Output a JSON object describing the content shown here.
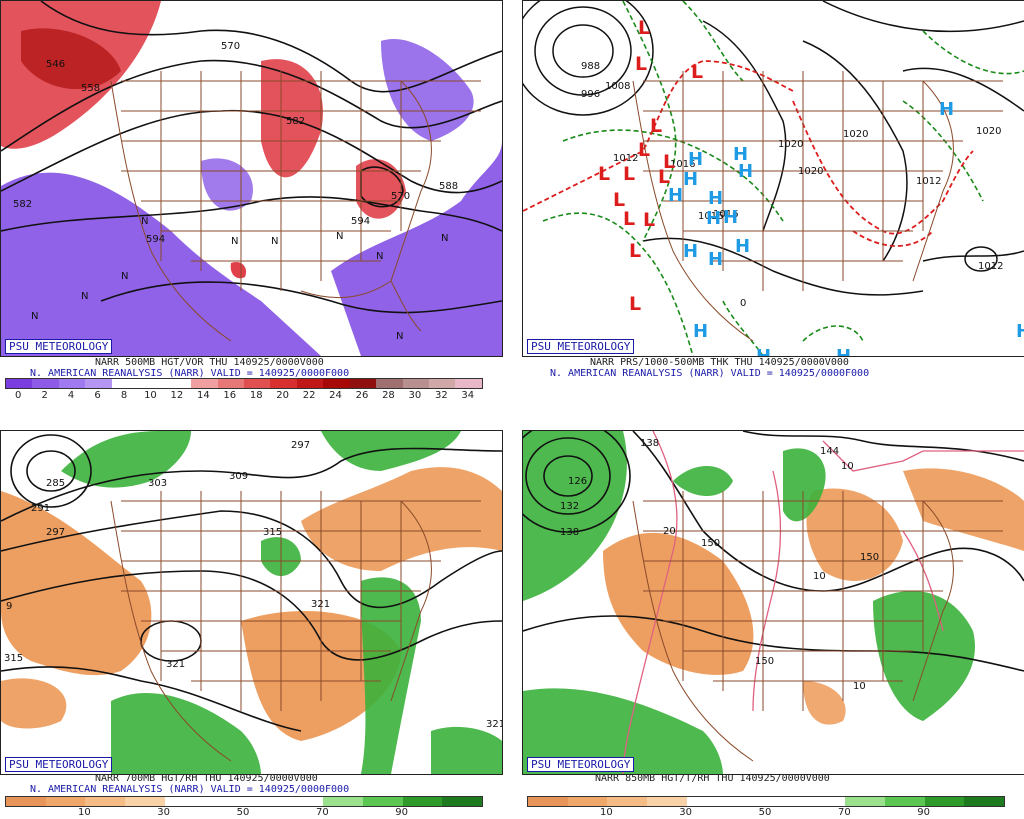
{
  "badge": "PSU METEOROLOGY",
  "panels": {
    "tl": {
      "caption1": "NARR 500MB HGT/VOR THU  140925/0000V000",
      "caption2": "N. AMERICAN REANALYSIS (NARR) VALID = 140925/0000F000",
      "labels": [
        "546",
        "558",
        "570",
        "582",
        "594",
        "582",
        "570",
        "588",
        "594",
        "N",
        "N",
        "N",
        "N",
        "N",
        "N",
        "N",
        "N",
        "N",
        "N"
      ],
      "colorbar": [
        "#7a3de0",
        "#8e5be8",
        "#a07af0",
        "#b596f2",
        "#ffffff",
        "#ffffff",
        "#ffffff",
        "#f0a0a0",
        "#e87878",
        "#e05050",
        "#d83030",
        "#c01818",
        "#a80808",
        "#901010",
        "#a07070",
        "#b89090",
        "#d0a8a8",
        "#e8b8c8"
      ],
      "ticks": [
        "0",
        "2",
        "4",
        "6",
        "8",
        "10",
        "12",
        "14",
        "16",
        "18",
        "20",
        "22",
        "24",
        "26",
        "28",
        "30",
        "32",
        "34"
      ]
    },
    "tr": {
      "caption1": "NARR PRS/1000-500MB THK THU  140925/0000V000",
      "caption2": "N. AMERICAN REANALYSIS (NARR) VALID = 140925/0000F000",
      "labels": [
        "988",
        "996",
        "1008",
        "1012",
        "1016",
        "1020",
        "1012",
        "1020",
        "1020",
        "1012",
        "1016",
        "1020",
        "1016",
        "0"
      ]
    },
    "bl": {
      "caption1": "NARR 700MB HGT/RH THU  140925/0000V000",
      "caption2": "N. AMERICAN REANALYSIS (NARR) VALID = 140925/0000F000",
      "labels": [
        "285",
        "291",
        "297",
        "303",
        "309",
        "297",
        "315",
        "321",
        "321",
        "315",
        "321",
        "9"
      ],
      "colorbar": [
        "#e8955a",
        "#f0a86a",
        "#f5bd85",
        "#fad2a8",
        "#ffffff",
        "#ffffff",
        "#ffffff",
        "#ffffff",
        "#9be08c",
        "#5cc652",
        "#2e9a2a",
        "#1e7a1e"
      ],
      "ticks": [
        "10",
        "30",
        "50",
        "70",
        "90"
      ]
    },
    "br": {
      "caption1": "NARR 850MB HGT/T/RH THU  140925/0000V000",
      "labels": [
        "126",
        "132",
        "138",
        "138",
        "144",
        "150",
        "150",
        "150",
        "10",
        "20",
        "10",
        "10"
      ],
      "colorbar": [
        "#e8955a",
        "#f0a86a",
        "#f5bd85",
        "#fad2a8",
        "#ffffff",
        "#ffffff",
        "#ffffff",
        "#ffffff",
        "#9be08c",
        "#5cc652",
        "#2e9a2a",
        "#1e7a1e"
      ],
      "ticks": [
        "10",
        "30",
        "50",
        "70",
        "90"
      ]
    }
  },
  "symbols": {
    "lows": [
      "L",
      "L",
      "L",
      "L",
      "L",
      "L",
      "L",
      "L",
      "L",
      "L",
      "L",
      "L",
      "L",
      "L"
    ],
    "highs": [
      "H",
      "H",
      "H",
      "H",
      "H",
      "H",
      "H",
      "H",
      "H",
      "H",
      "H",
      "H",
      "H",
      "H",
      "H",
      "H"
    ]
  },
  "colors": {
    "vort_purple": "#8a5ae6",
    "vort_red": "#e0404a",
    "rh_green": "#3bb13b",
    "rh_orange": "#ec9a58",
    "states": "#8a4a2a",
    "low_red": "#dd1c1c",
    "high_blue": "#1f9be6",
    "thk_green": "#1a8a1a",
    "thk_red": "#dd1c1c"
  }
}
